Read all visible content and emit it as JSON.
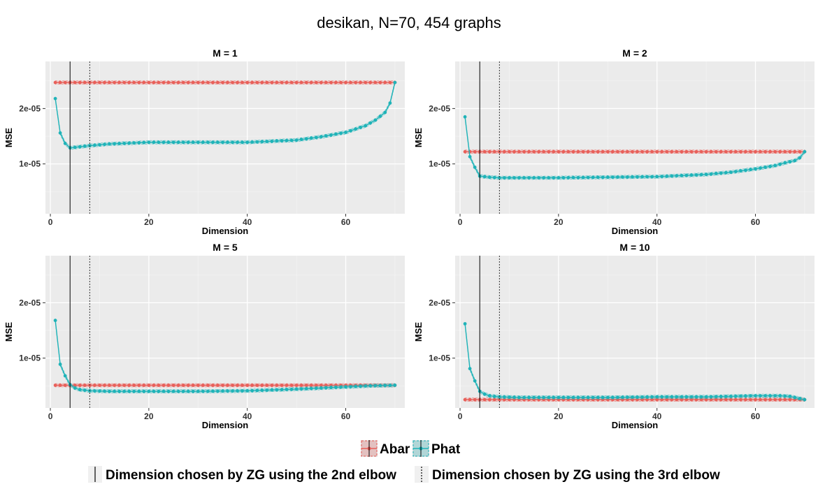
{
  "chart_data": {
    "type": "line",
    "title": "desikan, N=70, 454 graphs",
    "xlabel": "Dimension",
    "ylabel": "MSE",
    "xlim": [
      -1,
      72
    ],
    "ylim": [
      1e-06,
      2.85e-05
    ],
    "x_ticks": [
      0,
      20,
      40,
      60
    ],
    "x_tick_labels": [
      "0",
      "20",
      "40",
      "60"
    ],
    "y_ticks": [
      1e-05,
      2e-05
    ],
    "y_tick_labels": [
      "1e-05",
      "2e-05"
    ],
    "vlines": [
      {
        "x": 4,
        "style": "solid",
        "label": "Dimension chosen by ZG using the 2nd elbow"
      },
      {
        "x": 8,
        "style": "dotted",
        "label": "Dimension chosen by ZG using the 3rd elbow"
      }
    ],
    "series_names": [
      "Abar",
      "Phat"
    ],
    "colors": {
      "Abar": "#E8605A",
      "Phat": "#1FB3B8"
    },
    "panels": [
      {
        "label": "M = 1",
        "abar": {
          "d": [
            1,
            70
          ],
          "v": [
            2.47e-05,
            2.47e-05
          ]
        },
        "phat": {
          "d": [
            1,
            2,
            3,
            4,
            6,
            8,
            12,
            20,
            30,
            40,
            50,
            55,
            60,
            64,
            66,
            68,
            69,
            70
          ],
          "v": [
            2.18e-05,
            1.56e-05,
            1.37e-05,
            1.29e-05,
            1.31e-05,
            1.33e-05,
            1.36e-05,
            1.39e-05,
            1.39e-05,
            1.39e-05,
            1.43e-05,
            1.49e-05,
            1.57e-05,
            1.69e-05,
            1.79e-05,
            1.93e-05,
            2.1e-05,
            2.47e-05
          ]
        }
      },
      {
        "label": "M = 2",
        "abar": {
          "d": [
            1,
            70
          ],
          "v": [
            1.22e-05,
            1.22e-05
          ]
        },
        "phat": {
          "d": [
            1,
            2,
            3,
            4,
            6,
            8,
            12,
            20,
            30,
            40,
            50,
            55,
            60,
            64,
            66,
            68,
            69,
            70
          ],
          "v": [
            1.85e-05,
            1.13e-05,
            9.4e-06,
            7.8e-06,
            7.6e-06,
            7.5e-06,
            7.5e-06,
            7.5e-06,
            7.6e-06,
            7.7e-06,
            8.1e-06,
            8.5e-06,
            9.1e-06,
            9.7e-06,
            1.02e-05,
            1.06e-05,
            1.11e-05,
            1.22e-05
          ]
        }
      },
      {
        "label": "M = 5",
        "abar": {
          "d": [
            1,
            70
          ],
          "v": [
            5.1e-06,
            5.1e-06
          ]
        },
        "phat": {
          "d": [
            1,
            2,
            3,
            4,
            5,
            6,
            8,
            12,
            20,
            30,
            40,
            50,
            60,
            65,
            70
          ],
          "v": [
            1.68e-05,
            8.9e-06,
            6.8e-06,
            5.2e-06,
            4.6e-06,
            4.3e-06,
            4.1e-06,
            4e-06,
            4e-06,
            4e-06,
            4.1e-06,
            4.4e-06,
            4.8e-06,
            5e-06,
            5.1e-06
          ]
        }
      },
      {
        "label": "M = 10",
        "abar": {
          "d": [
            1,
            70
          ],
          "v": [
            2.5e-06,
            2.5e-06
          ]
        },
        "phat": {
          "d": [
            1,
            2,
            3,
            4,
            5,
            6,
            8,
            12,
            20,
            30,
            40,
            50,
            60,
            65,
            67,
            68,
            69,
            70
          ],
          "v": [
            1.62e-05,
            8.1e-06,
            5.9e-06,
            4e-06,
            3.5e-06,
            3.2e-06,
            3e-06,
            2.9e-06,
            2.9e-06,
            2.9e-06,
            3e-06,
            3e-06,
            3.2e-06,
            3.2e-06,
            3.1e-06,
            2.9e-06,
            2.7e-06,
            2.5e-06
          ]
        }
      }
    ]
  }
}
